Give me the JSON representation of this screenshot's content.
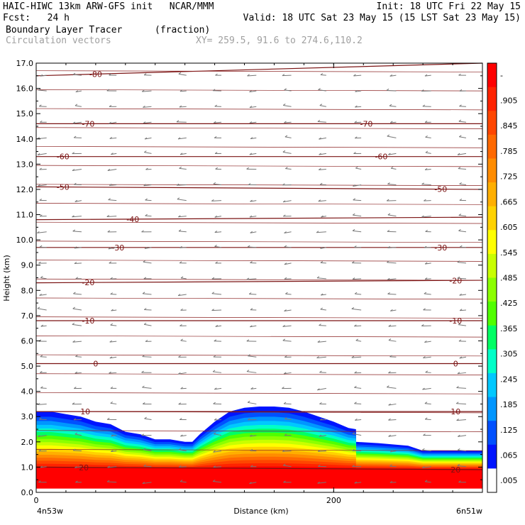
{
  "header": {
    "line1_left": "HAIC-HIWC 13km ARW-GFS init   NCAR/MMM",
    "line1_right": "Init: 18 UTC Fri 22 May 15",
    "line2_left": "Fcst:   24 h",
    "line2_right": "Valid: 18 UTC Sat 23 May 15 (15 LST Sat 23 May 15)",
    "line3_left": "Boundary Layer Tracer",
    "line3_mid": "(fraction)",
    "line4_left": "Circulation vectors",
    "line4_mid": "XY= 259.5, 91.6 to 274.6,110.2"
  },
  "chart_data": {
    "type": "heatmap",
    "xlabel": "Distance (km)",
    "ylabel": "Height (km)",
    "xlim": [
      0,
      300
    ],
    "ylim": [
      0.0,
      17.0
    ],
    "x_ticks": [
      "0",
      "200"
    ],
    "x_endpoints": {
      "left": "4n53w",
      "right": "6n51w"
    },
    "y_ticks": [
      "0.0",
      "1.0",
      "2.0",
      "3.0",
      "4.0",
      "5.0",
      "6.0",
      "7.0",
      "8.0",
      "9.0",
      "10.0",
      "11.0",
      "12.0",
      "13.0",
      "14.0",
      "15.0",
      "16.0",
      "17.0"
    ],
    "colorbar": {
      "labels": [
        "-",
        ".905",
        ".845",
        ".785",
        ".725",
        ".665",
        ".605",
        ".545",
        ".485",
        ".425",
        ".365",
        ".305",
        ".245",
        ".185",
        ".125",
        ".065",
        ".005"
      ],
      "colors": [
        "#ff0000",
        "#ff2300",
        "#ff4600",
        "#ff6900",
        "#ff8c00",
        "#ffaf00",
        "#ffd200",
        "#ffff00",
        "#c8ff00",
        "#8cff00",
        "#50ff00",
        "#00ff64",
        "#00ffc8",
        "#00c8ff",
        "#0096ff",
        "#0050ff",
        "#0014ff",
        "#ffffff"
      ]
    },
    "tracer_top_km": [
      [
        0,
        3.2
      ],
      [
        10,
        3.2
      ],
      [
        20,
        3.1
      ],
      [
        30,
        3.0
      ],
      [
        40,
        2.8
      ],
      [
        50,
        2.7
      ],
      [
        60,
        2.4
      ],
      [
        70,
        2.3
      ],
      [
        80,
        2.1
      ],
      [
        90,
        2.1
      ],
      [
        100,
        2.0
      ],
      [
        105,
        2.0
      ],
      [
        110,
        2.3
      ],
      [
        120,
        2.8
      ],
      [
        130,
        3.2
      ],
      [
        140,
        3.35
      ],
      [
        150,
        3.4
      ],
      [
        160,
        3.4
      ],
      [
        170,
        3.35
      ],
      [
        180,
        3.2
      ],
      [
        190,
        3.0
      ],
      [
        200,
        2.8
      ],
      [
        210,
        2.55
      ],
      [
        215,
        2.5
      ],
      [
        215,
        2.0
      ],
      [
        230,
        1.95
      ],
      [
        250,
        1.85
      ],
      [
        260,
        1.65
      ],
      [
        300,
        1.65
      ]
    ],
    "isotherms_c": [
      {
        "value": "-80",
        "y0": 16.5,
        "y1": 17.0
      },
      {
        "value": "-70",
        "y0": 14.6,
        "y1": 14.6
      },
      {
        "value": "-60",
        "y0": 13.3,
        "y1": 13.3
      },
      {
        "value": "-50",
        "y0": 12.1,
        "y1": 12.0
      },
      {
        "value": "-40",
        "y0": 10.8,
        "y1": 10.9
      },
      {
        "value": "-30",
        "y0": 9.7,
        "y1": 9.7
      },
      {
        "value": "-20",
        "y0": 8.3,
        "y1": 8.4
      },
      {
        "value": "-10",
        "y0": 6.8,
        "y1": 6.8
      },
      {
        "value": "0",
        "y0": 5.1,
        "y1": 5.1
      },
      {
        "value": "10",
        "y0": 3.2,
        "y1": 3.2
      },
      {
        "value": "20",
        "y0": 1.0,
        "y1": 0.9
      }
    ],
    "isotherm_label_x": {
      "-80": 40,
      "-70": 35,
      "-60": 18,
      "-50": 18,
      "-40": 65,
      "-30": 55,
      "-20": 35,
      "-10": 35,
      "0": 40,
      "10": 33,
      "20": 32
    },
    "isotherm_label_x_right": {
      "-70": 222,
      "-60": 232,
      "-50": 272,
      "-30": 272,
      "-20": 282,
      "-10": 282,
      "0": 282,
      "10": 282,
      "20": 282
    }
  }
}
